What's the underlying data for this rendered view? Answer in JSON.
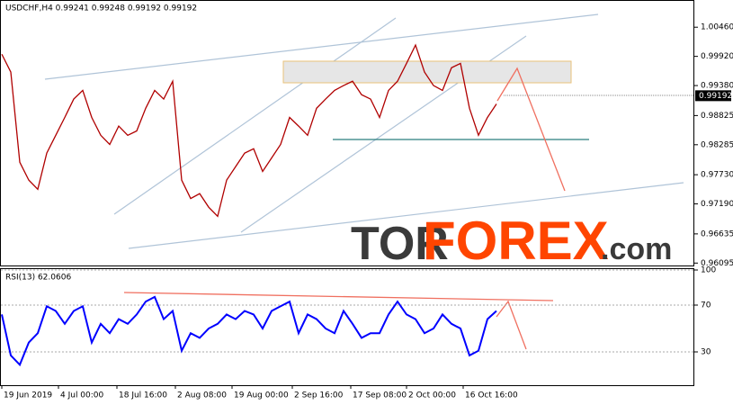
{
  "chart_data": [
    {
      "type": "line",
      "title": "USDCHF,H4 0.99241 0.99248 0.99192 0.99192",
      "color": "#b00000",
      "series": [
        {
          "name": "USDCHF",
          "color": "#b00000",
          "values": [
            0.9996,
            0.9963,
            0.9796,
            0.9763,
            0.9746,
            0.9813,
            0.9846,
            0.9879,
            0.9913,
            0.9929,
            0.9879,
            0.9846,
            0.9829,
            0.9863,
            0.9846,
            0.9854,
            0.9896,
            0.9929,
            0.9913,
            0.9946,
            0.9763,
            0.9729,
            0.9738,
            0.9713,
            0.9696,
            0.9763,
            0.9788,
            0.9813,
            0.9821,
            0.9779,
            0.9804,
            0.9829,
            0.9879,
            0.9863,
            0.9846,
            0.9896,
            0.9913,
            0.9929,
            0.9938,
            0.9946,
            0.9921,
            0.9913,
            0.9879,
            0.9929,
            0.9946,
            0.9979,
            1.0013,
            0.9963,
            0.9938,
            0.9929,
            0.9971,
            0.9979,
            0.9896,
            0.9846,
            0.9879,
            0.9904
          ]
        }
      ],
      "ylim": [
        0.9605,
        1.0093
      ],
      "yticks": [
        {
          "value": 1.0046,
          "label": "1.00460"
        },
        {
          "value": 0.9992,
          "label": "0.99920"
        },
        {
          "value": 0.9938,
          "label": "0.99380"
        },
        {
          "value": 0.98825,
          "label": "0.98825"
        },
        {
          "value": 0.98285,
          "label": "0.98285"
        },
        {
          "value": 0.9773,
          "label": "0.97730"
        },
        {
          "value": 0.9719,
          "label": "0.97190"
        },
        {
          "value": 0.96635,
          "label": "0.96635"
        },
        {
          "value": 0.96095,
          "label": "0.96095"
        }
      ],
      "last_price": 0.99192,
      "xlim": [
        0,
        55
      ]
    },
    {
      "type": "line",
      "title": "RSI(13) 62.0606",
      "series": [
        {
          "name": "RSI(13)",
          "color": "#0000ff",
          "values": [
            62,
            27,
            19,
            38,
            46,
            69,
            65,
            54,
            65,
            69,
            38,
            54,
            46,
            58,
            54,
            62,
            73,
            77,
            58,
            65,
            31,
            46,
            42,
            50,
            54,
            62,
            58,
            65,
            62,
            50,
            65,
            69,
            73,
            46,
            62,
            58,
            50,
            46,
            65,
            54,
            42,
            46,
            46,
            62,
            73,
            62,
            58,
            46,
            50,
            62,
            54,
            50,
            27,
            31,
            58,
            65
          ]
        }
      ],
      "ylim": [
        0,
        100
      ],
      "yticks": [
        100,
        70,
        30
      ],
      "xlim": [
        0,
        55
      ],
      "xticks": [
        {
          "value": 0,
          "label": "19 Jun 2019"
        },
        {
          "value": 6.3,
          "label": "4 Jul 00:00"
        },
        {
          "value": 12.8,
          "label": "18 Jul 16:00"
        },
        {
          "value": 19.3,
          "label": "2 Aug 08:00"
        },
        {
          "value": 25.6,
          "label": "19 Aug 00:00"
        },
        {
          "value": 32.3,
          "label": "2 Sep 16:00"
        },
        {
          "value": 38.8,
          "label": "17 Sep 08:00"
        },
        {
          "value": 45,
          "label": "2 Oct 00:00"
        },
        {
          "value": 51.3,
          "label": "16 Oct 16:00"
        }
      ]
    }
  ],
  "watermark": [
    "TOR",
    "FOREX",
    ".com"
  ]
}
